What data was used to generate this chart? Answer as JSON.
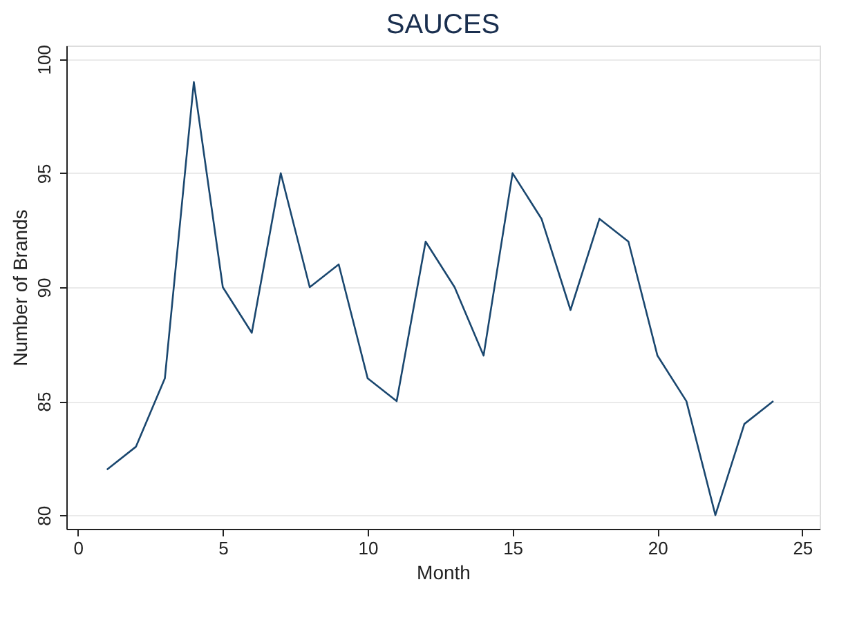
{
  "chart_data": {
    "type": "line",
    "title": "SAUCES",
    "xlabel": "Month",
    "ylabel": "Number of Brands",
    "x": [
      1,
      2,
      3,
      4,
      5,
      6,
      7,
      8,
      9,
      10,
      11,
      12,
      13,
      14,
      15,
      16,
      17,
      18,
      19,
      20,
      21,
      22,
      23,
      24
    ],
    "series": [
      {
        "color": "#1a476f",
        "values": [
          82,
          83,
          86,
          99,
          90,
          88,
          95,
          90,
          91,
          86,
          85,
          92,
          90,
          87,
          95,
          93,
          89,
          93,
          92,
          87,
          85,
          80,
          84,
          85
        ]
      }
    ],
    "xlim": [
      -0.4,
      25.6
    ],
    "ylim": [
      79.4,
      100.6
    ],
    "xticks": [
      0,
      5,
      10,
      15,
      20,
      25
    ],
    "yticks": [
      80,
      85,
      90,
      95,
      100
    ],
    "grid": "y",
    "marker": "none",
    "line_style": "solid"
  }
}
